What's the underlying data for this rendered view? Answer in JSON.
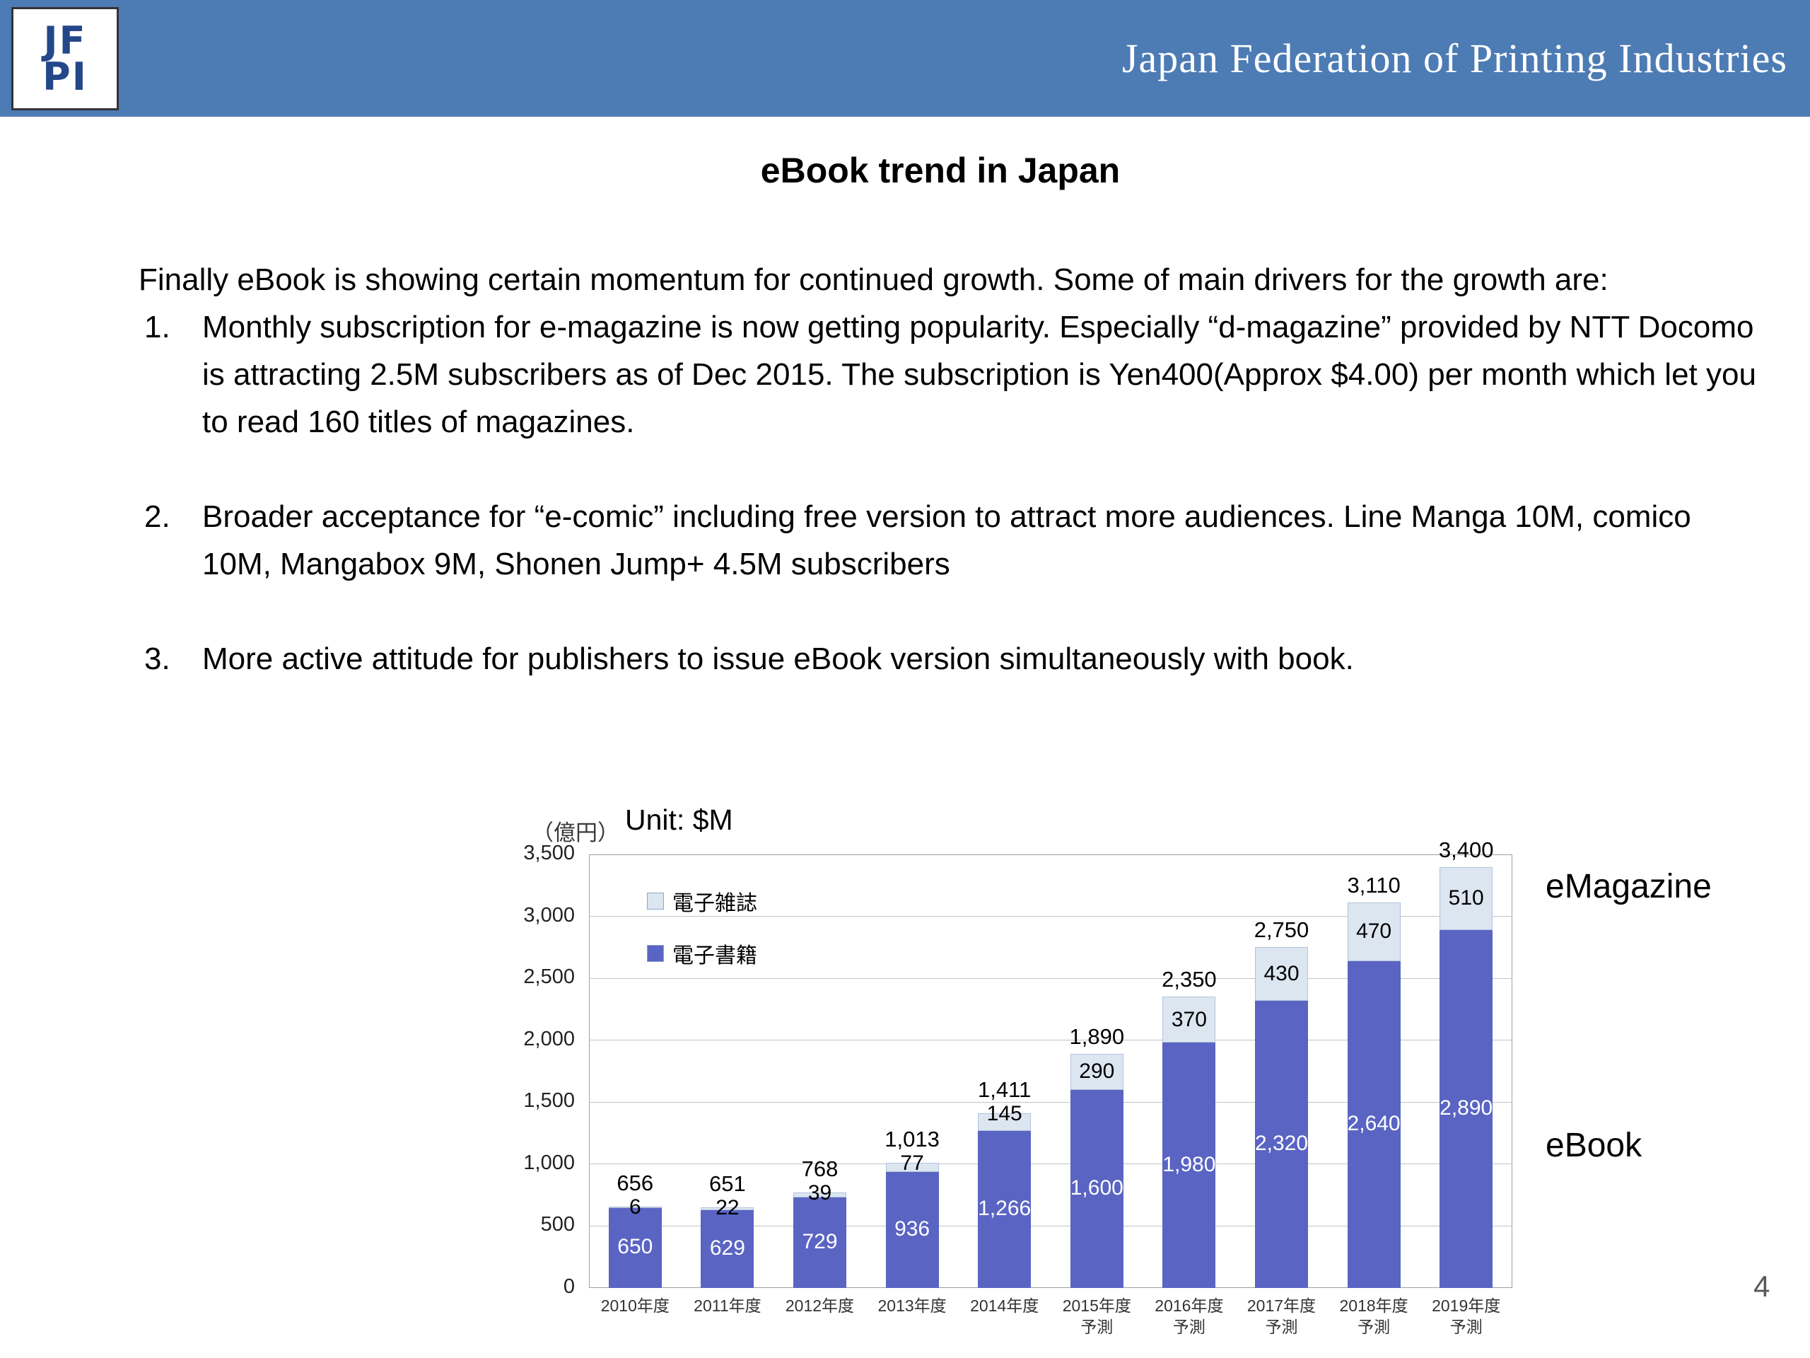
{
  "theme": {
    "header_blue": "#4d7bb4"
  },
  "header": {
    "org_name": "Japan Federation of Printing Industries",
    "logo_line1": "JF",
    "logo_line2": "PI"
  },
  "slide": {
    "title": "eBook trend in Japan",
    "intro": "Finally eBook is showing certain momentum for continued growth. Some of main drivers for the growth are:",
    "points": [
      {
        "num": "1.",
        "text": "Monthly subscription for e-magazine is now getting popularity. Especially “d-magazine” provided by NTT Docomo is attracting 2.5M subscribers as of Dec 2015. The subscription is Yen400(Approx $4.00) per month which let you to read 160 titles of magazines."
      },
      {
        "num": "2.",
        "text": "Broader acceptance for “e-comic” including free version to attract more audiences. Line Manga  10M, comico 10M, Mangabox 9M, Shonen Jump+ 4.5M subscribers"
      },
      {
        "num": "3.",
        "text": "More active attitude for publishers to issue eBook version simultaneously with book."
      }
    ],
    "page_number": "4"
  },
  "chart_data": {
    "type": "bar",
    "stacked": true,
    "axis_unit_jp": "（億円）",
    "unit_label": "Unit: $M",
    "categories": [
      "2010年度",
      "2011年度",
      "2012年度",
      "2013年度",
      "2014年度",
      "2015年度\n予測",
      "2016年度\n予測",
      "2017年度\n予測",
      "2018年度\n予測",
      "2019年度\n予測"
    ],
    "series": [
      {
        "name": "電子書籍",
        "label_en": "eBook",
        "color": "#5a64c3",
        "values": [
          650,
          629,
          729,
          936,
          1266,
          1600,
          1980,
          2320,
          2640,
          2890
        ]
      },
      {
        "name": "電子雑誌",
        "label_en": "eMagazine",
        "color": "#dce6f1",
        "values": [
          6,
          22,
          39,
          77,
          145,
          290,
          370,
          430,
          470,
          510
        ]
      }
    ],
    "totals": [
      656,
      651,
      768,
      1013,
      1411,
      1890,
      2350,
      2750,
      3110,
      3400
    ],
    "ylim": [
      0,
      3500
    ],
    "ytick_step": 500,
    "yticks": [
      "0",
      "500",
      "1,000",
      "1,500",
      "2,000",
      "2,500",
      "3,000",
      "3,500"
    ],
    "legend": [
      "電子雑誌",
      "電子書籍"
    ],
    "right_labels": {
      "top": "eMagazine",
      "bottom": "eBook"
    },
    "grid": true,
    "legend_position": "top-left-inside"
  }
}
